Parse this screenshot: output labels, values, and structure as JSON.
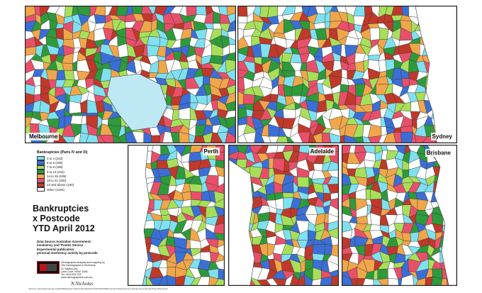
{
  "title": {
    "line1": "Bankruptcies",
    "line2": "x Postcode",
    "line3": "YTD April 2012"
  },
  "legend": {
    "title": "Bankruptcies (Parts IV and XI)",
    "items": [
      {
        "label": "3 to 4  (243)",
        "color": "#7fe0f0"
      },
      {
        "label": "5 to 6  (196)",
        "color": "#3b6fd6"
      },
      {
        "label": "7 to 8  (188)",
        "color": "#a8df5a"
      },
      {
        "label": "9 to 13  (231)",
        "color": "#2f9a3c"
      },
      {
        "label": "14 to 18  (109)",
        "color": "#f0a64a"
      },
      {
        "label": "19 to 21  (200)",
        "color": "#e8506a"
      },
      {
        "label": "22 and above  (193)",
        "color": "#c0392b"
      },
      {
        "label": "Other  (1284)",
        "color": "#ffffff"
      }
    ]
  },
  "source": {
    "line1": "Data Source:Australian Government:",
    "line2": "Insolvency and Trustee Service",
    "line3": "Experimental publication:",
    "line4": "personal insolvency activity by postcode"
  },
  "credit": {
    "line1": "Demographic analysis and mapping by",
    "line2": "The Demographer's Workshop",
    "line3": "31 Yardley Ave",
    "line4": "Lane Cove, NSW, 2066",
    "line5": "Tel: 0418 616 222",
    "line6": "www.demographers.com.au"
  },
  "signature": "N.Nicholas",
  "footer": "Sources: http://www.itsa.gov.au/dir228/itsaweb.nsf/docindex/Statistics%20%20%20Personal+%20insolvency+activity+by+postcode?OpenDocument",
  "panels": [
    {
      "key": "melbourne",
      "label": "Melbourne"
    },
    {
      "key": "sydney",
      "label": "Sydney"
    },
    {
      "key": "perth",
      "label": "Perth"
    },
    {
      "key": "adelaide",
      "label": "Adelaide"
    },
    {
      "key": "brisbane",
      "label": "Brisbane"
    }
  ]
}
